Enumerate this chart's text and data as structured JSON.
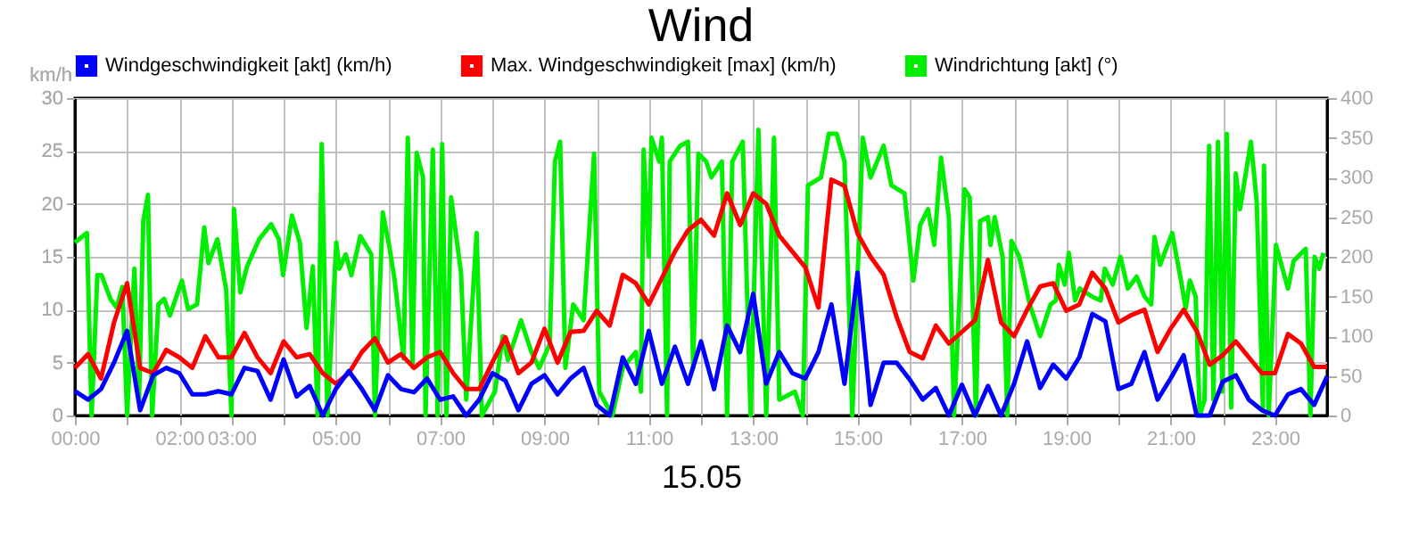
{
  "chart_data": {
    "type": "line",
    "title": "Wind",
    "xlabel": "15.05",
    "ylabel": "km/h",
    "xlim": [
      0,
      24
    ],
    "xticks": [
      {
        "value": 0,
        "label": "00:00"
      },
      {
        "value": 1,
        "label": null
      },
      {
        "value": 2,
        "label": "02:00"
      },
      {
        "value": 3,
        "label": "03:00"
      },
      {
        "value": 4,
        "label": null
      },
      {
        "value": 5,
        "label": "05:00"
      },
      {
        "value": 6,
        "label": null
      },
      {
        "value": 7,
        "label": "07:00"
      },
      {
        "value": 8,
        "label": null
      },
      {
        "value": 9,
        "label": "09:00"
      },
      {
        "value": 10,
        "label": null
      },
      {
        "value": 11,
        "label": "11:00"
      },
      {
        "value": 12,
        "label": null
      },
      {
        "value": 13,
        "label": "13:00"
      },
      {
        "value": 14,
        "label": null
      },
      {
        "value": 15,
        "label": "15:00"
      },
      {
        "value": 16,
        "label": null
      },
      {
        "value": 17,
        "label": "17:00"
      },
      {
        "value": 18,
        "label": null
      },
      {
        "value": 19,
        "label": "19:00"
      },
      {
        "value": 20,
        "label": null
      },
      {
        "value": 21,
        "label": "21:00"
      },
      {
        "value": 22,
        "label": null
      },
      {
        "value": 23,
        "label": "23:00"
      }
    ],
    "ylim": [
      0,
      30
    ],
    "yticks": [
      0,
      5,
      10,
      15,
      20,
      25,
      30
    ],
    "y2lim": [
      0,
      400
    ],
    "y2ticks": [
      0,
      50,
      100,
      150,
      200,
      250,
      300,
      350,
      400
    ],
    "grid": true,
    "legend": "top",
    "series": [
      {
        "name": "Windrichtung [akt] (°)",
        "color": "#00ee00",
        "axis": "y2",
        "x": [
          0,
          0.23,
          0.32,
          0.43,
          0.51,
          0.68,
          0.8,
          0.91,
          1.0,
          1.14,
          1.23,
          1.31,
          1.4,
          1.48,
          1.6,
          1.71,
          1.82,
          2.05,
          2.17,
          2.34,
          2.48,
          2.56,
          2.73,
          2.9,
          3.0,
          3.05,
          3.17,
          3.3,
          3.53,
          3.76,
          3.91,
          3.99,
          4.16,
          4.31,
          4.44,
          4.56,
          4.65,
          4.73,
          4.84,
          5.01,
          5.07,
          5.19,
          5.3,
          5.47,
          5.68,
          5.75,
          5.9,
          6.02,
          6.13,
          6.3,
          6.38,
          6.47,
          6.55,
          6.67,
          6.72,
          6.86,
          6.95,
          7.04,
          7.12,
          7.21,
          7.4,
          7.5,
          7.7,
          7.8,
          8.05,
          8.2,
          8.3,
          8.55,
          8.75,
          8.9,
          9.1,
          9.2,
          9.3,
          9.4,
          9.55,
          9.75,
          9.95,
          10.05,
          10.3,
          10.5,
          10.75,
          10.85,
          10.9,
          11.0,
          11.05,
          11.2,
          11.25,
          11.35,
          11.4,
          11.6,
          11.75,
          11.85,
          11.95,
          12.1,
          12.2,
          12.4,
          12.5,
          12.6,
          12.8,
          12.95,
          13.1,
          13.25,
          13.4,
          13.5,
          13.8,
          13.95,
          14.05,
          14.3,
          14.45,
          14.6,
          14.75,
          14.9,
          15.1,
          15.25,
          15.5,
          15.65,
          15.9,
          16.07,
          16.2,
          16.35,
          16.47,
          16.6,
          16.75,
          16.85,
          17.05,
          17.15,
          17.27,
          17.35,
          17.5,
          17.55,
          17.63,
          17.78,
          17.87,
          17.95,
          18.1,
          18.3,
          18.5,
          18.7,
          18.8,
          18.86,
          18.97,
          19.05,
          19.17,
          19.26,
          19.49,
          19.66,
          19.74,
          19.89,
          20.04,
          20.18,
          20.35,
          20.5,
          20.63,
          20.69,
          20.8,
          21.03,
          21.2,
          21.29,
          21.37,
          21.48,
          21.56,
          21.65,
          21.74,
          21.82,
          21.91,
          21.99,
          22.08,
          22.16,
          22.25,
          22.33,
          22.54,
          22.65,
          22.77,
          22.79,
          22.88,
          23.02,
          23.25,
          23.36,
          23.59,
          23.68,
          23.76,
          23.85,
          23.93
        ],
        "values": [
          218,
          230,
          0,
          177,
          177,
          147,
          136,
          162,
          0,
          185,
          20,
          245,
          278,
          0,
          140,
          147,
          126,
          170,
          134,
          140,
          237,
          192,
          222,
          158,
          0,
          260,
          155,
          188,
          222,
          241,
          222,
          177,
          252,
          218,
          110,
          188,
          0,
          342,
          0,
          218,
          185,
          203,
          177,
          226,
          203,
          0,
          256,
          215,
          170,
          72,
          350,
          61,
          331,
          301,
          0,
          335,
          0,
          342,
          0,
          275,
          180,
          20,
          230,
          0,
          30,
          100,
          70,
          120,
          80,
          60,
          90,
          320,
          345,
          60,
          140,
          120,
          330,
          30,
          0,
          60,
          80,
          30,
          335,
          200,
          350,
          320,
          350,
          0,
          320,
          340,
          345,
          60,
          330,
          320,
          300,
          320,
          0,
          320,
          345,
          0,
          360,
          0,
          350,
          20,
          30,
          0,
          290,
          300,
          355,
          355,
          320,
          0,
          350,
          300,
          340,
          290,
          280,
          170,
          240,
          260,
          215,
          325,
          250,
          0,
          285,
          275,
          0,
          245,
          250,
          215,
          250,
          200,
          0,
          220,
          200,
          140,
          100,
          140,
          145,
          190,
          165,
          205,
          145,
          160,
          150,
          145,
          185,
          165,
          200,
          160,
          175,
          150,
          140,
          225,
          190,
          230,
          170,
          135,
          170,
          150,
          0,
          20,
          340,
          20,
          345,
          30,
          355,
          10,
          305,
          260,
          345,
          270,
          10,
          315,
          0,
          215,
          160,
          195,
          210,
          0,
          200,
          185,
          205
        ]
      },
      {
        "name": "Max. Windgeschwindigkeit [max] (km/h)",
        "color": "#ff0000",
        "x": [
          0,
          0.25,
          0.5,
          0.75,
          1,
          1.25,
          1.5,
          1.75,
          2,
          2.25,
          2.5,
          2.75,
          3,
          3.25,
          3.5,
          3.75,
          4,
          4.25,
          4.5,
          4.75,
          5,
          5.25,
          5.5,
          5.75,
          6,
          6.25,
          6.5,
          6.75,
          7,
          7.25,
          7.5,
          7.75,
          8,
          8.25,
          8.5,
          8.75,
          9,
          9.25,
          9.5,
          9.75,
          10,
          10.25,
          10.5,
          10.75,
          11,
          11.25,
          11.5,
          11.75,
          12,
          12.25,
          12.5,
          12.75,
          13,
          13.25,
          13.5,
          13.75,
          14,
          14.25,
          14.5,
          14.75,
          15,
          15.25,
          15.5,
          15.75,
          16,
          16.25,
          16.5,
          16.75,
          17,
          17.25,
          17.5,
          17.75,
          18,
          18.25,
          18.5,
          18.75,
          19,
          19.25,
          19.5,
          19.75,
          20,
          20.25,
          20.5,
          20.75,
          21,
          21.25,
          21.5,
          21.75,
          22,
          22.25,
          22.5,
          22.75,
          23,
          23.25,
          23.5,
          23.75,
          24
        ],
        "values": [
          4.5,
          5.8,
          3.5,
          8.8,
          12.5,
          4.5,
          4,
          6.2,
          5.5,
          4.5,
          7.5,
          5.5,
          5.5,
          7.8,
          5.5,
          4,
          7,
          5.5,
          5.8,
          4,
          3,
          4,
          6,
          7.3,
          5,
          5.8,
          4.5,
          5.5,
          6,
          4,
          2.5,
          2.5,
          5,
          7.4,
          4,
          5,
          8.2,
          5,
          7.9,
          8,
          9.9,
          8.5,
          13.3,
          12.5,
          10.5,
          13,
          15.5,
          17.5,
          18.5,
          17,
          21,
          18,
          21,
          20,
          17,
          15.5,
          14,
          10.2,
          22.3,
          21.7,
          17.2,
          15,
          13.3,
          9.3,
          6,
          5.4,
          8.5,
          6.8,
          7.9,
          9,
          14.7,
          8.8,
          7.5,
          10,
          12.2,
          12.5,
          9.9,
          10.5,
          13.5,
          12,
          8.8,
          9.5,
          10,
          6,
          8.2,
          10,
          8,
          4.8,
          5.7,
          7,
          5.5,
          4,
          4,
          7.7,
          6.8,
          4.6,
          4.6
        ]
      },
      {
        "name": "Windgeschwindigkeit [akt] (km/h)",
        "color": "#0000ff",
        "x": [
          0,
          0.25,
          0.5,
          0.75,
          1,
          1.25,
          1.5,
          1.75,
          2,
          2.25,
          2.5,
          2.75,
          3,
          3.25,
          3.5,
          3.75,
          4,
          4.25,
          4.5,
          4.75,
          5,
          5.25,
          5.5,
          5.75,
          6,
          6.25,
          6.5,
          6.75,
          7,
          7.25,
          7.5,
          7.75,
          8,
          8.25,
          8.5,
          8.75,
          9,
          9.25,
          9.5,
          9.75,
          10,
          10.25,
          10.5,
          10.75,
          11,
          11.25,
          11.5,
          11.75,
          12,
          12.25,
          12.5,
          12.75,
          13,
          13.25,
          13.5,
          13.75,
          14,
          14.25,
          14.5,
          14.75,
          15,
          15.25,
          15.5,
          15.75,
          16,
          16.25,
          16.5,
          16.75,
          17,
          17.25,
          17.5,
          17.75,
          18,
          18.25,
          18.5,
          18.75,
          19,
          19.25,
          19.5,
          19.75,
          20,
          20.25,
          20.5,
          20.75,
          21,
          21.25,
          21.5,
          21.75,
          22,
          22.25,
          22.5,
          22.75,
          23,
          23.25,
          23.5,
          23.75,
          24
        ],
        "values": [
          2.3,
          1.5,
          2.5,
          5,
          8,
          0.5,
          3.8,
          4.5,
          4,
          2,
          2,
          2.3,
          2,
          4.5,
          4.2,
          1.5,
          5.3,
          1.8,
          2.8,
          0,
          2.5,
          4.2,
          2.5,
          0.5,
          3.8,
          2.5,
          2.2,
          3.5,
          1.5,
          1.8,
          0,
          1.5,
          4,
          3.3,
          0.5,
          3,
          3.8,
          2,
          3.5,
          4.5,
          1,
          0,
          5.5,
          3,
          8,
          3,
          6.5,
          3,
          7,
          2.5,
          8.5,
          6,
          11.5,
          3,
          6,
          4,
          3.5,
          6,
          10.5,
          3,
          13.5,
          1,
          5,
          5,
          3.4,
          1.5,
          2.6,
          0,
          2.9,
          0,
          2.8,
          0,
          3,
          7,
          2.6,
          4.8,
          3.5,
          5.5,
          9.6,
          8.9,
          2.5,
          3,
          6,
          1.5,
          3.5,
          5.7,
          0,
          0,
          3.2,
          3.8,
          1.5,
          0.5,
          0,
          2,
          2.5,
          1,
          3.7
        ]
      }
    ]
  }
}
